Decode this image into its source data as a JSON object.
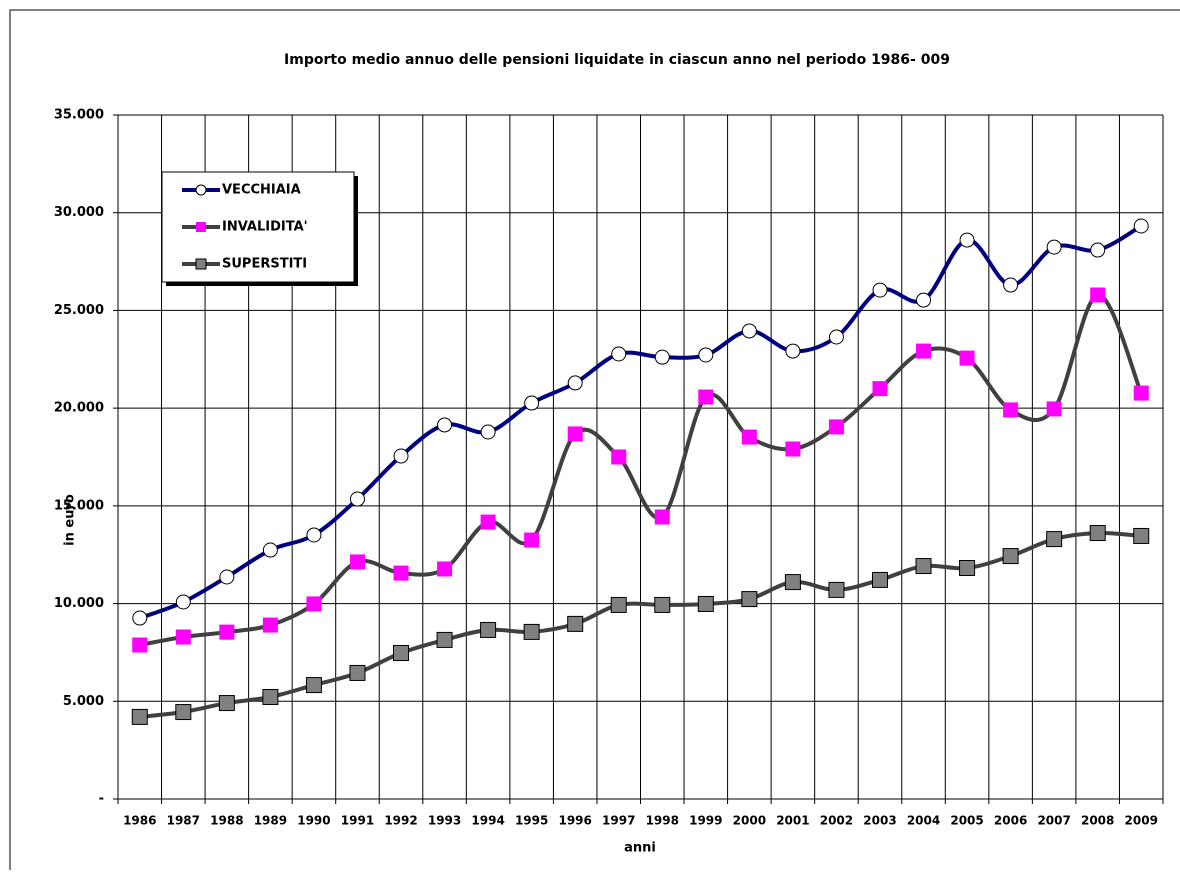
{
  "chart_data": {
    "type": "line",
    "title": "Importo medio annuo delle pensioni liquidate in ciascun anno nel periodo 1986- 009",
    "y_label": "in euro",
    "x_label": "anni",
    "categories": [
      "1986",
      "1987",
      "1988",
      "1989",
      "1990",
      "1991",
      "1992",
      "1993",
      "1994",
      "1995",
      "1996",
      "1997",
      "1998",
      "1999",
      "2000",
      "2001",
      "2002",
      "2003",
      "2004",
      "2005",
      "2006",
      "2007",
      "2008",
      "2009"
    ],
    "series": [
      {
        "name": "VECCHIAIA",
        "color": "#000080",
        "marker": "circle",
        "marker_color": "#ffffff",
        "values": [
          9260,
          10080,
          11360,
          12740,
          13510,
          15350,
          17550,
          19140,
          18780,
          20260,
          21290,
          22770,
          22610,
          22720,
          23950,
          22920,
          23640,
          26040,
          25530,
          28600,
          26300,
          28240,
          28090,
          29320
        ]
      },
      {
        "name": "INVALIDITA'",
        "color": "#404040",
        "marker": "square",
        "marker_color": "#ff00ff",
        "values": [
          7880,
          8290,
          8540,
          8900,
          9980,
          12130,
          11560,
          11770,
          14170,
          13250,
          18680,
          17500,
          14430,
          20570,
          18520,
          17910,
          19040,
          21000,
          22920,
          22560,
          19910,
          19960,
          25790,
          20770
        ]
      },
      {
        "name": "SUPERSTITI",
        "color": "#404040",
        "marker": "square",
        "marker_color": "#808080",
        "values": [
          4200,
          4450,
          4910,
          5220,
          5830,
          6450,
          7470,
          8140,
          8650,
          8550,
          8960,
          9930,
          9930,
          9980,
          10230,
          11100,
          10700,
          11210,
          11920,
          11820,
          12430,
          13300,
          13610,
          13460
        ]
      }
    ],
    "ylim": [
      0,
      35000
    ],
    "yticks": [
      {
        "value": 0,
        "label": "-"
      },
      {
        "value": 5000,
        "label": "5.000"
      },
      {
        "value": 10000,
        "label": "10.000"
      },
      {
        "value": 15000,
        "label": "15.000"
      },
      {
        "value": 20000,
        "label": "20.000"
      },
      {
        "value": 25000,
        "label": "25.000"
      },
      {
        "value": 30000,
        "label": "30.000"
      },
      {
        "value": 35000,
        "label": "35.000"
      }
    ],
    "grid": true,
    "smooth": true,
    "legend": "upper left"
  }
}
